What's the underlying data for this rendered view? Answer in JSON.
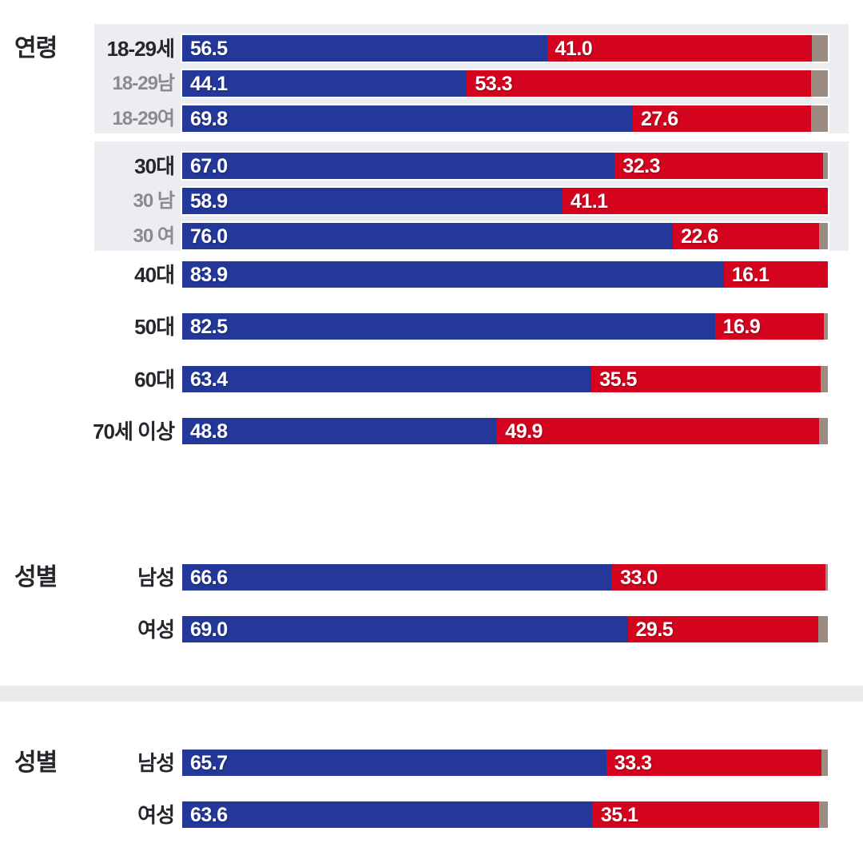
{
  "chart_data": {
    "type": "bar",
    "orientation": "horizontal",
    "stacked": true,
    "unit": "%",
    "xlim": [
      0,
      100
    ],
    "grid": false,
    "legend_position": "none",
    "colors": {
      "series_blue": "#24389a",
      "series_red": "#d4041f",
      "series_rest": "#9c8b80",
      "highlight_box": "#ebedf0",
      "divider_band": "#e8eaec",
      "label_dark": "#26262c",
      "label_gray": "#8a8a90",
      "value_text": "#ffffff"
    },
    "note": "Each row is a 100% stacked bar: blue value + red value + unlabeled beige remainder.",
    "sections": [
      {
        "header": "연령",
        "groups": [
          {
            "highlight": true,
            "rows": [
              {
                "label": "18-29세",
                "sub": false,
                "blue": 56.5,
                "red": 41.0
              },
              {
                "label": "18-29남",
                "sub": true,
                "blue": 44.1,
                "red": 53.3
              },
              {
                "label": "18-29여",
                "sub": true,
                "blue": 69.8,
                "red": 27.6
              }
            ]
          },
          {
            "highlight": true,
            "rows": [
              {
                "label": "30대",
                "sub": false,
                "blue": 67.0,
                "red": 32.3
              },
              {
                "label": "30 남",
                "sub": true,
                "blue": 58.9,
                "red": 41.1
              },
              {
                "label": "30 여",
                "sub": true,
                "blue": 76.0,
                "red": 22.6
              }
            ]
          },
          {
            "highlight": false,
            "rows": [
              {
                "label": "40대",
                "sub": false,
                "blue": 83.9,
                "red": 16.1
              }
            ]
          },
          {
            "highlight": false,
            "rows": [
              {
                "label": "50대",
                "sub": false,
                "blue": 82.5,
                "red": 16.9
              }
            ]
          },
          {
            "highlight": false,
            "rows": [
              {
                "label": "60대",
                "sub": false,
                "blue": 63.4,
                "red": 35.5
              }
            ]
          },
          {
            "highlight": false,
            "rows": [
              {
                "label": "70세 이상",
                "sub": false,
                "blue": 48.8,
                "red": 49.9
              }
            ]
          }
        ]
      },
      {
        "header": "성별",
        "groups": [
          {
            "highlight": false,
            "rows": [
              {
                "label": "남성",
                "sub": false,
                "blue": 66.6,
                "red": 33.0
              }
            ]
          },
          {
            "highlight": false,
            "rows": [
              {
                "label": "여성",
                "sub": false,
                "blue": 69.0,
                "red": 29.5
              }
            ]
          }
        ]
      },
      {
        "header": "성별",
        "groups": [
          {
            "highlight": false,
            "rows": [
              {
                "label": "남성",
                "sub": false,
                "blue": 65.7,
                "red": 33.3
              }
            ]
          },
          {
            "highlight": false,
            "rows": [
              {
                "label": "여성",
                "sub": false,
                "blue": 63.6,
                "red": 35.1
              }
            ]
          }
        ]
      }
    ]
  }
}
